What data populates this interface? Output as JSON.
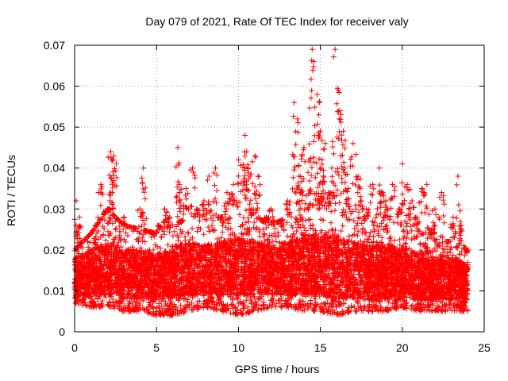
{
  "chart_data": {
    "type": "scatter",
    "title": "Day 079 of 2021, Rate Of TEC Index for receiver valy",
    "xlabel": "GPS time / hours",
    "ylabel": "ROTI / TECUs",
    "xlim": [
      0,
      25
    ],
    "ylim": [
      0,
      0.07
    ],
    "xticks": [
      0,
      5,
      10,
      15,
      20,
      25
    ],
    "xtick_labels": [
      "0",
      "5",
      "10",
      "15",
      "20",
      "25"
    ],
    "yticks": [
      0,
      0.01,
      0.02,
      0.03,
      0.04,
      0.05,
      0.06,
      0.07
    ],
    "ytick_labels": [
      "0",
      "0.01",
      "0.02",
      "0.03",
      "0.04",
      "0.05",
      "0.06",
      "0.07"
    ],
    "grid": true,
    "marker": "+",
    "series_color": "#ff0000",
    "series": [
      {
        "name": "ROTI",
        "x": [
          0.1,
          0.1,
          0.2,
          0.3,
          0.5,
          0.8,
          1.1,
          1.4,
          1.6,
          1.9,
          2.0,
          2.2,
          2.3,
          2.4,
          2.5,
          2.7,
          3.0,
          3.3,
          3.6,
          4.0,
          4.2,
          4.3,
          4.5,
          4.8,
          5.1,
          5.5,
          5.8,
          6.3,
          6.4,
          6.5,
          6.8,
          7.2,
          7.5,
          7.9,
          8.2,
          8.6,
          8.9,
          9.3,
          9.7,
          10.0,
          10.4,
          10.5,
          10.6,
          10.8,
          11.0,
          11.2,
          11.5,
          11.7,
          12.0,
          12.3,
          12.6,
          13.0,
          13.4,
          13.6,
          13.7,
          14.0,
          14.3,
          14.5,
          14.6,
          14.8,
          14.9,
          15.0,
          15.1,
          15.3,
          15.5,
          15.7,
          15.9,
          16.1,
          16.2,
          16.4,
          16.5,
          16.7,
          17.0,
          17.3,
          17.5,
          17.8,
          18.2,
          18.6,
          18.8,
          19.0,
          19.4,
          19.8,
          20.0,
          20.3,
          20.6,
          20.9,
          21.2,
          21.5,
          21.8,
          22.0,
          22.4,
          22.8,
          23.1,
          23.4,
          23.6,
          23.9
        ],
        "y": [
          0.032,
          0.01,
          0.018,
          0.028,
          0.012,
          0.022,
          0.015,
          0.026,
          0.036,
          0.02,
          0.03,
          0.044,
          0.042,
          0.043,
          0.025,
          0.015,
          0.028,
          0.02,
          0.018,
          0.03,
          0.04,
          0.022,
          0.015,
          0.02,
          0.026,
          0.03,
          0.028,
          0.045,
          0.036,
          0.024,
          0.035,
          0.04,
          0.03,
          0.032,
          0.038,
          0.04,
          0.028,
          0.034,
          0.036,
          0.042,
          0.048,
          0.044,
          0.04,
          0.03,
          0.043,
          0.038,
          0.025,
          0.028,
          0.03,
          0.022,
          0.026,
          0.032,
          0.056,
          0.052,
          0.038,
          0.045,
          0.042,
          0.069,
          0.066,
          0.058,
          0.053,
          0.049,
          0.042,
          0.046,
          0.034,
          0.04,
          0.069,
          0.059,
          0.054,
          0.049,
          0.04,
          0.035,
          0.046,
          0.038,
          0.032,
          0.03,
          0.036,
          0.04,
          0.034,
          0.032,
          0.036,
          0.03,
          0.041,
          0.036,
          0.032,
          0.028,
          0.035,
          0.036,
          0.025,
          0.03,
          0.034,
          0.022,
          0.028,
          0.038,
          0.026,
          0.02
        ]
      }
    ],
    "density_band_note": "dense scatter of points; low envelope between ~0.004 and high envelope",
    "dense_band_low": [
      [
        0,
        0.007
      ],
      [
        1,
        0.006
      ],
      [
        2,
        0.006
      ],
      [
        3,
        0.005
      ],
      [
        4,
        0.005
      ],
      [
        5,
        0.004
      ],
      [
        6,
        0.004
      ],
      [
        7,
        0.005
      ],
      [
        8,
        0.006
      ],
      [
        9,
        0.005
      ],
      [
        10,
        0.004
      ],
      [
        11,
        0.005
      ],
      [
        12,
        0.006
      ],
      [
        13,
        0.006
      ],
      [
        14,
        0.005
      ],
      [
        15,
        0.005
      ],
      [
        16,
        0.004
      ],
      [
        17,
        0.005
      ],
      [
        18,
        0.005
      ],
      [
        19,
        0.005
      ],
      [
        20,
        0.006
      ],
      [
        21,
        0.005
      ],
      [
        22,
        0.005
      ],
      [
        23,
        0.005
      ],
      [
        24,
        0.005
      ]
    ],
    "dense_band_high": [
      [
        0,
        0.02
      ],
      [
        1,
        0.024
      ],
      [
        2,
        0.03
      ],
      [
        3,
        0.026
      ],
      [
        4,
        0.025
      ],
      [
        5,
        0.024
      ],
      [
        6,
        0.026
      ],
      [
        7,
        0.028
      ],
      [
        8,
        0.026
      ],
      [
        9,
        0.028
      ],
      [
        10,
        0.03
      ],
      [
        11,
        0.028
      ],
      [
        12,
        0.026
      ],
      [
        13,
        0.028
      ],
      [
        14,
        0.032
      ],
      [
        15,
        0.03
      ],
      [
        16,
        0.03
      ],
      [
        17,
        0.028
      ],
      [
        18,
        0.026
      ],
      [
        19,
        0.026
      ],
      [
        20,
        0.026
      ],
      [
        21,
        0.024
      ],
      [
        22,
        0.022
      ],
      [
        23,
        0.022
      ],
      [
        24,
        0.02
      ]
    ],
    "dense_core": [
      [
        0,
        0.008,
        0.018
      ],
      [
        1,
        0.009,
        0.02
      ],
      [
        2,
        0.009,
        0.022
      ],
      [
        3,
        0.008,
        0.02
      ],
      [
        4,
        0.008,
        0.02
      ],
      [
        5,
        0.008,
        0.019
      ],
      [
        6,
        0.008,
        0.021
      ],
      [
        7,
        0.009,
        0.022
      ],
      [
        8,
        0.009,
        0.021
      ],
      [
        9,
        0.009,
        0.022
      ],
      [
        10,
        0.009,
        0.023
      ],
      [
        11,
        0.009,
        0.022
      ],
      [
        12,
        0.009,
        0.021
      ],
      [
        13,
        0.009,
        0.022
      ],
      [
        14,
        0.009,
        0.024
      ],
      [
        15,
        0.009,
        0.024
      ],
      [
        16,
        0.008,
        0.023
      ],
      [
        17,
        0.008,
        0.022
      ],
      [
        18,
        0.008,
        0.021
      ],
      [
        19,
        0.008,
        0.021
      ],
      [
        20,
        0.008,
        0.021
      ],
      [
        21,
        0.008,
        0.019
      ],
      [
        22,
        0.008,
        0.018
      ],
      [
        23,
        0.008,
        0.018
      ],
      [
        24,
        0.008,
        0.017
      ]
    ],
    "data_xmax": 24
  }
}
